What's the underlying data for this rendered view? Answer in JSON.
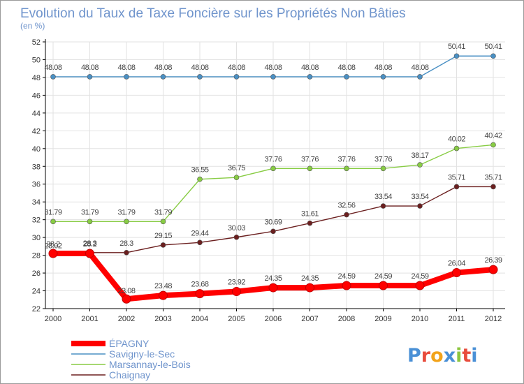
{
  "chart_data": {
    "type": "line",
    "title": "Evolution du Taux de Taxe Foncière sur les Propriétés Non Bâties",
    "subtitle": "(en %)",
    "x": [
      "2000",
      "2001",
      "2002",
      "2003",
      "2004",
      "2005",
      "2006",
      "2007",
      "2008",
      "2009",
      "2010",
      "2011",
      "2012"
    ],
    "ylim": [
      22,
      52
    ],
    "yticks": [
      22,
      24,
      26,
      28,
      30,
      32,
      34,
      36,
      38,
      40,
      42,
      44,
      46,
      48,
      50,
      52
    ],
    "grid": true,
    "legend_position": "bottom-left",
    "series": [
      {
        "name": "ÉPAGNY",
        "color": "#ff0000",
        "values": [
          28.2,
          28.2,
          23.08,
          23.48,
          23.68,
          23.92,
          24.35,
          24.35,
          24.59,
          24.59,
          24.59,
          26.04,
          26.39
        ],
        "labels": [
          "28.2",
          "28.2",
          "23.08",
          "23.48",
          "23.68",
          "23.92",
          "24.35",
          "24.35",
          "24.59",
          "24.59",
          "24.59",
          "26.04",
          "26.39"
        ]
      },
      {
        "name": "Savigny-le-Sec",
        "color": "#4a90c4",
        "values": [
          48.08,
          48.08,
          48.08,
          48.08,
          48.08,
          48.08,
          48.08,
          48.08,
          48.08,
          48.08,
          48.08,
          50.41,
          50.41
        ],
        "labels": [
          "48.08",
          "48.08",
          "48.08",
          "48.08",
          "48.08",
          "48.08",
          "48.08",
          "48.08",
          "48.08",
          "48.08",
          "48.08",
          "50.41",
          "50.41"
        ]
      },
      {
        "name": "Marsannay-le-Bois",
        "color": "#88cc44",
        "values": [
          31.79,
          31.79,
          31.79,
          31.79,
          36.55,
          36.75,
          37.76,
          37.76,
          37.76,
          37.76,
          38.17,
          40.02,
          40.42
        ],
        "labels": [
          "31.79",
          "31.79",
          "31.79",
          "31.79",
          "36.55",
          "36.75",
          "37.76",
          "37.76",
          "37.76",
          "37.76",
          "38.17",
          "40.02",
          "40.42"
        ]
      },
      {
        "name": "Chaignay",
        "color": "#6b1f1f",
        "values": [
          28.02,
          28.3,
          28.3,
          29.15,
          29.44,
          30.03,
          30.69,
          31.61,
          32.56,
          33.54,
          33.54,
          35.71,
          35.71
        ],
        "labels": [
          "28.02",
          "28.3",
          "28.3",
          "29.15",
          "29.44",
          "30.03",
          "30.69",
          "31.61",
          "32.56",
          "33.54",
          "33.54",
          "35.71",
          "35.71"
        ]
      }
    ]
  },
  "logo": {
    "text": "Proxiti"
  },
  "colors": {
    "title": "#6f94cc",
    "axis": "#000000",
    "grid": "#e2e2e2",
    "legend_text": "#6f94cc"
  }
}
